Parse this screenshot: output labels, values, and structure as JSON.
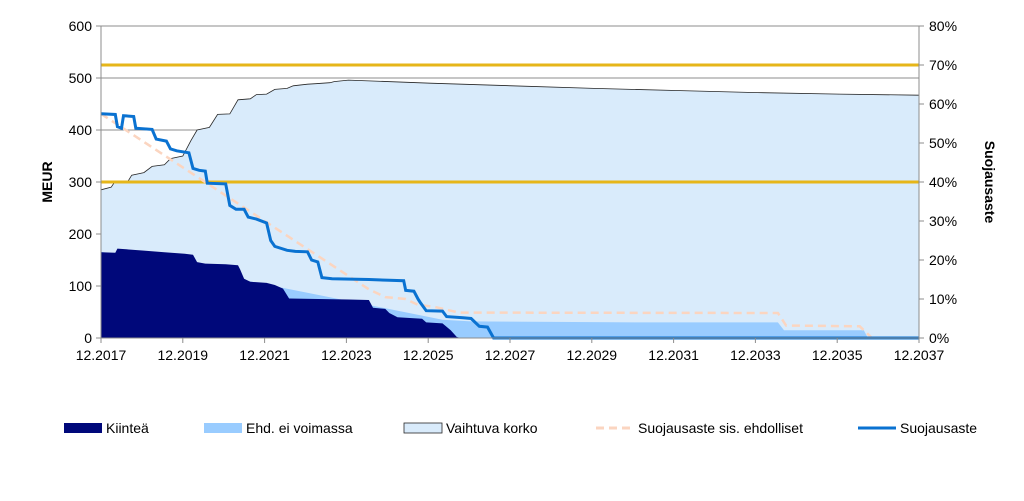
{
  "chart_data": {
    "type": "area",
    "title": "",
    "ylabel": "MEUR",
    "y2label": "Suojausaste",
    "ylim": [
      0,
      600
    ],
    "y2lim": [
      0,
      0.8
    ],
    "yticks": [
      0,
      100,
      200,
      300,
      400,
      500,
      600
    ],
    "y2ticks": [
      0,
      0.1,
      0.2,
      0.3,
      0.4,
      0.5,
      0.6,
      0.7,
      0.8
    ],
    "y2tick_labels": [
      "0%",
      "10%",
      "20%",
      "30%",
      "40%",
      "50%",
      "60%",
      "70%",
      "80%"
    ],
    "xlim": [
      2017.95,
      2037.95
    ],
    "xticks": [
      2017.95,
      2019.95,
      2021.95,
      2023.95,
      2025.95,
      2027.95,
      2029.95,
      2031.95,
      2033.95,
      2035.95,
      2037.95
    ],
    "xtick_labels": [
      "12.2017",
      "12.2019",
      "12.2021",
      "12.2023",
      "12.2025",
      "12.2027",
      "12.2029",
      "12.2031",
      "12.2033",
      "12.2035",
      "12.2037"
    ],
    "grid": "horizontal",
    "legend_position": "bottom",
    "reference_lines": [
      {
        "axis": "left",
        "value": 525,
        "color": "#E6B619"
      },
      {
        "axis": "left",
        "value": 300,
        "color": "#E6B619"
      }
    ],
    "series": [
      {
        "name": "Kiinteä",
        "kind": "area",
        "color": "#00087A",
        "points": [
          [
            2017.95,
            165
          ],
          [
            2018.3,
            164
          ],
          [
            2018.35,
            172
          ],
          [
            2019.0,
            168
          ],
          [
            2019.5,
            165
          ],
          [
            2020.0,
            162
          ],
          [
            2020.2,
            160
          ],
          [
            2020.3,
            146
          ],
          [
            2020.5,
            143
          ],
          [
            2021.0,
            142
          ],
          [
            2021.3,
            140
          ],
          [
            2021.35,
            132
          ],
          [
            2021.45,
            114
          ],
          [
            2021.6,
            108
          ],
          [
            2022.0,
            106
          ],
          [
            2022.2,
            102
          ],
          [
            2022.4,
            95
          ],
          [
            2022.55,
            76
          ],
          [
            2024.0,
            74
          ],
          [
            2024.5,
            73
          ],
          [
            2024.6,
            58
          ],
          [
            2024.9,
            56
          ],
          [
            2025.0,
            48
          ],
          [
            2025.2,
            40
          ],
          [
            2025.8,
            37
          ],
          [
            2025.9,
            30
          ],
          [
            2026.3,
            28
          ],
          [
            2026.5,
            15
          ],
          [
            2026.65,
            2
          ],
          [
            2026.75,
            0
          ]
        ]
      },
      {
        "name": "Ehd. ei voimassa",
        "kind": "area",
        "color": "#99CCFF",
        "points": [
          [
            2017.95,
            166
          ],
          [
            2026.0,
            40
          ],
          [
            2026.3,
            35
          ],
          [
            2027.0,
            32
          ],
          [
            2029.0,
            31
          ],
          [
            2031.0,
            30
          ],
          [
            2034.5,
            30
          ],
          [
            2034.65,
            15
          ],
          [
            2036.6,
            15
          ],
          [
            2036.7,
            0
          ]
        ]
      },
      {
        "name": "Vaihtuva korko",
        "kind": "area",
        "color": "#D9EBFB",
        "stroke": "#262626",
        "points": [
          [
            2017.95,
            285
          ],
          [
            2018.2,
            290
          ],
          [
            2018.3,
            302
          ],
          [
            2018.6,
            300
          ],
          [
            2018.7,
            313
          ],
          [
            2019.0,
            318
          ],
          [
            2019.2,
            330
          ],
          [
            2019.5,
            333
          ],
          [
            2019.65,
            345
          ],
          [
            2019.95,
            350
          ],
          [
            2020.15,
            380
          ],
          [
            2020.3,
            400
          ],
          [
            2020.6,
            405
          ],
          [
            2020.8,
            430
          ],
          [
            2021.1,
            431
          ],
          [
            2021.3,
            458
          ],
          [
            2021.6,
            460
          ],
          [
            2021.75,
            468
          ],
          [
            2022.0,
            469
          ],
          [
            2022.2,
            478
          ],
          [
            2022.5,
            480
          ],
          [
            2022.65,
            485
          ],
          [
            2023.0,
            488
          ],
          [
            2023.2,
            489
          ],
          [
            2023.55,
            491
          ],
          [
            2023.65,
            493
          ],
          [
            2024.0,
            496
          ],
          [
            2026.0,
            490
          ],
          [
            2028.0,
            485
          ],
          [
            2030.0,
            480
          ],
          [
            2032.0,
            476
          ],
          [
            2034.0,
            472
          ],
          [
            2036.0,
            469
          ],
          [
            2037.95,
            467
          ]
        ]
      },
      {
        "name": "Suojausaste sis. ehdolliset",
        "kind": "line",
        "axis": "right",
        "color": "#FBD5C0",
        "dash": true,
        "points": [
          [
            2017.95,
            0.575
          ],
          [
            2024.5,
            0.125
          ],
          [
            2024.9,
            0.105
          ],
          [
            2025.4,
            0.1
          ],
          [
            2025.7,
            0.085
          ],
          [
            2026.1,
            0.08
          ],
          [
            2026.5,
            0.07
          ],
          [
            2026.7,
            0.065
          ],
          [
            2034.5,
            0.064
          ],
          [
            2034.7,
            0.032
          ],
          [
            2036.5,
            0.03
          ],
          [
            2036.8,
            0.0
          ],
          [
            2037.95,
            0.0
          ]
        ]
      },
      {
        "name": "Suojausaste",
        "kind": "line",
        "axis": "right",
        "color": "#0A72D1",
        "dash": false,
        "points": [
          [
            2017.95,
            0.575
          ],
          [
            2018.3,
            0.573
          ],
          [
            2018.35,
            0.542
          ],
          [
            2018.45,
            0.538
          ],
          [
            2018.5,
            0.57
          ],
          [
            2018.75,
            0.568
          ],
          [
            2018.8,
            0.538
          ],
          [
            2019.2,
            0.535
          ],
          [
            2019.3,
            0.51
          ],
          [
            2019.55,
            0.505
          ],
          [
            2019.65,
            0.485
          ],
          [
            2019.8,
            0.48
          ],
          [
            2020.1,
            0.475
          ],
          [
            2020.2,
            0.435
          ],
          [
            2020.35,
            0.43
          ],
          [
            2020.5,
            0.428
          ],
          [
            2020.55,
            0.397
          ],
          [
            2021.0,
            0.395
          ],
          [
            2021.1,
            0.34
          ],
          [
            2021.25,
            0.33
          ],
          [
            2021.45,
            0.33
          ],
          [
            2021.55,
            0.31
          ],
          [
            2021.75,
            0.305
          ],
          [
            2022.0,
            0.295
          ],
          [
            2022.1,
            0.25
          ],
          [
            2022.2,
            0.235
          ],
          [
            2022.5,
            0.225
          ],
          [
            2022.7,
            0.222
          ],
          [
            2023.0,
            0.221
          ],
          [
            2023.1,
            0.2
          ],
          [
            2023.25,
            0.195
          ],
          [
            2023.35,
            0.155
          ],
          [
            2023.6,
            0.152
          ],
          [
            2024.5,
            0.15
          ],
          [
            2025.0,
            0.148
          ],
          [
            2025.35,
            0.147
          ],
          [
            2025.4,
            0.122
          ],
          [
            2025.6,
            0.12
          ],
          [
            2025.7,
            0.1
          ],
          [
            2025.75,
            0.092
          ],
          [
            2025.9,
            0.07
          ],
          [
            2026.3,
            0.069
          ],
          [
            2026.4,
            0.055
          ],
          [
            2026.8,
            0.052
          ],
          [
            2027.0,
            0.05
          ],
          [
            2027.2,
            0.03
          ],
          [
            2027.4,
            0.028
          ],
          [
            2027.55,
            0.0
          ],
          [
            2037.95,
            0.0
          ]
        ]
      }
    ]
  },
  "legend": {
    "items": [
      {
        "label": "Kiinteä",
        "style": "filled",
        "color": "#00087A"
      },
      {
        "label": "Ehd. ei voimassa",
        "style": "filled",
        "color": "#99CCFF"
      },
      {
        "label": "Vaihtuva korko",
        "style": "outlined",
        "color": "#D9EBFB"
      },
      {
        "label": "Suojausaste sis. ehdolliset",
        "style": "dashed",
        "color": "#FBD5C0"
      },
      {
        "label": "Suojausaste",
        "style": "line",
        "color": "#0A72D1"
      }
    ]
  }
}
